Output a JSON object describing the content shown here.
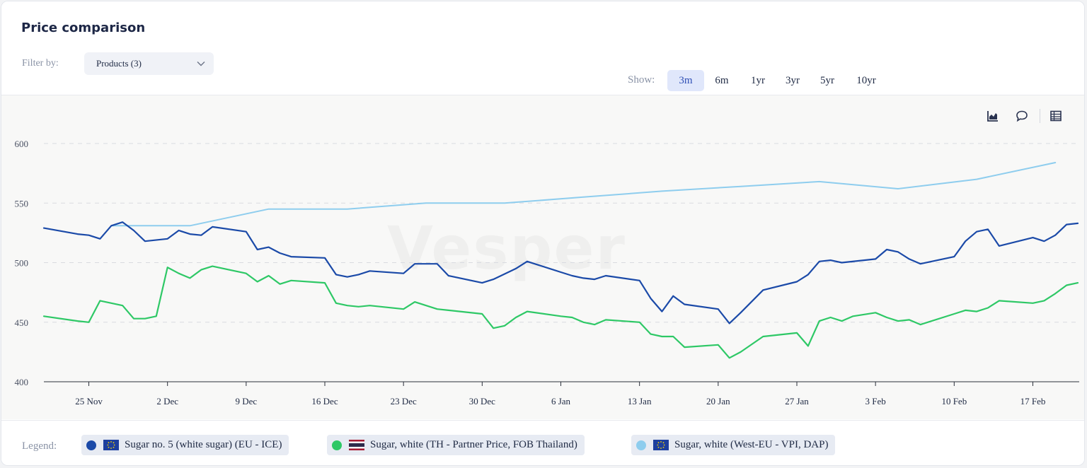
{
  "header": {
    "title": "Price comparison",
    "filter_label": "Filter by:",
    "filter_value": "Products (3)",
    "show_label": "Show:",
    "ranges": [
      "3m",
      "6m",
      "1yr",
      "3yr",
      "5yr",
      "10yr"
    ],
    "active_range": "3m"
  },
  "toolbar": {
    "icons": [
      "chart-type-icon",
      "comment-icon",
      "table-icon"
    ]
  },
  "watermark": "Vesper",
  "legend": {
    "label": "Legend:",
    "items": [
      {
        "label": "Sugar no. 5 (white sugar) (EU - ICE)",
        "color": "#1b4aa8",
        "flag": "eu-flag-icon"
      },
      {
        "label": "Sugar, white (TH - Partner Price, FOB Thailand)",
        "color": "#2ec866",
        "flag": "thailand-flag-icon"
      },
      {
        "label": "Sugar, white (West-EU - VPI, DAP)",
        "color": "#8ecdee",
        "flag": "eu-flag-icon"
      }
    ]
  },
  "chart_data": {
    "type": "line",
    "x_unit": "date",
    "ylim": [
      400,
      600
    ],
    "yticks": [
      400,
      450,
      500,
      550,
      600
    ],
    "xticks": [
      {
        "label": "25 Nov",
        "date": "2024-11-25"
      },
      {
        "label": "2 Dec",
        "date": "2024-12-02"
      },
      {
        "label": "9 Dec",
        "date": "2024-12-09"
      },
      {
        "label": "16 Dec",
        "date": "2024-12-16"
      },
      {
        "label": "23 Dec",
        "date": "2024-12-23"
      },
      {
        "label": "30 Dec",
        "date": "2024-12-30"
      },
      {
        "label": "6 Jan",
        "date": "2025-01-06"
      },
      {
        "label": "13 Jan",
        "date": "2025-01-13"
      },
      {
        "label": "20 Jan",
        "date": "2025-01-20"
      },
      {
        "label": "27 Jan",
        "date": "2025-01-27"
      },
      {
        "label": "3 Feb",
        "date": "2025-02-03"
      },
      {
        "label": "10 Feb",
        "date": "2025-02-10"
      },
      {
        "label": "17 Feb",
        "date": "2025-02-17"
      }
    ],
    "x_domain": [
      "2024-11-21",
      "2025-02-21"
    ],
    "grid": "horizontal-dashed",
    "legend_position": "bottom",
    "series": [
      {
        "name": "Sugar no. 5 (white sugar) (EU - ICE)",
        "color": "#1b4aa8",
        "points": [
          [
            "2024-11-21",
            529
          ],
          [
            "2024-11-24",
            524
          ],
          [
            "2024-11-25",
            523
          ],
          [
            "2024-11-26",
            520
          ],
          [
            "2024-11-27",
            531
          ],
          [
            "2024-11-28",
            534
          ],
          [
            "2024-11-29",
            527
          ],
          [
            "2024-11-30",
            518
          ],
          [
            "2024-12-02",
            520
          ],
          [
            "2024-12-03",
            527
          ],
          [
            "2024-12-04",
            524
          ],
          [
            "2024-12-05",
            523
          ],
          [
            "2024-12-06",
            530
          ],
          [
            "2024-12-09",
            526
          ],
          [
            "2024-12-10",
            511
          ],
          [
            "2024-12-11",
            513
          ],
          [
            "2024-12-12",
            508
          ],
          [
            "2024-12-13",
            505
          ],
          [
            "2024-12-16",
            504
          ],
          [
            "2024-12-17",
            490
          ],
          [
            "2024-12-18",
            488
          ],
          [
            "2024-12-19",
            490
          ],
          [
            "2024-12-20",
            493
          ],
          [
            "2024-12-23",
            491
          ],
          [
            "2024-12-24",
            499
          ],
          [
            "2024-12-26",
            499
          ],
          [
            "2024-12-27",
            489
          ],
          [
            "2024-12-30",
            483
          ],
          [
            "2024-12-31",
            486
          ],
          [
            "2025-01-02",
            495
          ],
          [
            "2025-01-03",
            501
          ],
          [
            "2025-01-06",
            492
          ],
          [
            "2025-01-07",
            489
          ],
          [
            "2025-01-08",
            487
          ],
          [
            "2025-01-09",
            486
          ],
          [
            "2025-01-10",
            489
          ],
          [
            "2025-01-13",
            485
          ],
          [
            "2025-01-14",
            470
          ],
          [
            "2025-01-15",
            459
          ],
          [
            "2025-01-16",
            472
          ],
          [
            "2025-01-17",
            465
          ],
          [
            "2025-01-20",
            461
          ],
          [
            "2025-01-21",
            449
          ],
          [
            "2025-01-22",
            458
          ],
          [
            "2025-01-24",
            477
          ],
          [
            "2025-01-27",
            484
          ],
          [
            "2025-01-28",
            490
          ],
          [
            "2025-01-29",
            501
          ],
          [
            "2025-01-30",
            502
          ],
          [
            "2025-01-31",
            500
          ],
          [
            "2025-02-03",
            503
          ],
          [
            "2025-02-04",
            511
          ],
          [
            "2025-02-05",
            509
          ],
          [
            "2025-02-06",
            503
          ],
          [
            "2025-02-07",
            499
          ],
          [
            "2025-02-10",
            505
          ],
          [
            "2025-02-11",
            518
          ],
          [
            "2025-02-12",
            526
          ],
          [
            "2025-02-13",
            528
          ],
          [
            "2025-02-14",
            514
          ],
          [
            "2025-02-17",
            521
          ],
          [
            "2025-02-18",
            518
          ],
          [
            "2025-02-19",
            523
          ],
          [
            "2025-02-20",
            532
          ],
          [
            "2025-02-21",
            533
          ]
        ]
      },
      {
        "name": "Sugar, white (TH - Partner Price, FOB Thailand)",
        "color": "#2ec866",
        "points": [
          [
            "2024-11-21",
            455
          ],
          [
            "2024-11-24",
            451
          ],
          [
            "2024-11-25",
            450
          ],
          [
            "2024-11-26",
            468
          ],
          [
            "2024-11-27",
            466
          ],
          [
            "2024-11-28",
            464
          ],
          [
            "2024-11-29",
            453
          ],
          [
            "2024-11-30",
            453
          ],
          [
            "2024-12-01",
            455
          ],
          [
            "2024-12-02",
            496
          ],
          [
            "2024-12-03",
            491
          ],
          [
            "2024-12-04",
            487
          ],
          [
            "2024-12-05",
            494
          ],
          [
            "2024-12-06",
            497
          ],
          [
            "2024-12-09",
            491
          ],
          [
            "2024-12-10",
            484
          ],
          [
            "2024-12-11",
            489
          ],
          [
            "2024-12-12",
            482
          ],
          [
            "2024-12-13",
            485
          ],
          [
            "2024-12-16",
            483
          ],
          [
            "2024-12-17",
            466
          ],
          [
            "2024-12-18",
            464
          ],
          [
            "2024-12-19",
            463
          ],
          [
            "2024-12-20",
            464
          ],
          [
            "2024-12-23",
            461
          ],
          [
            "2024-12-24",
            467
          ],
          [
            "2024-12-26",
            461
          ],
          [
            "2024-12-27",
            460
          ],
          [
            "2024-12-30",
            457
          ],
          [
            "2024-12-31",
            445
          ],
          [
            "2025-01-01",
            447
          ],
          [
            "2025-01-02",
            454
          ],
          [
            "2025-01-03",
            459
          ],
          [
            "2025-01-06",
            455
          ],
          [
            "2025-01-07",
            454
          ],
          [
            "2025-01-08",
            450
          ],
          [
            "2025-01-09",
            448
          ],
          [
            "2025-01-10",
            452
          ],
          [
            "2025-01-13",
            450
          ],
          [
            "2025-01-14",
            440
          ],
          [
            "2025-01-15",
            438
          ],
          [
            "2025-01-16",
            438
          ],
          [
            "2025-01-17",
            429
          ],
          [
            "2025-01-20",
            431
          ],
          [
            "2025-01-21",
            420
          ],
          [
            "2025-01-22",
            425
          ],
          [
            "2025-01-24",
            438
          ],
          [
            "2025-01-27",
            441
          ],
          [
            "2025-01-28",
            430
          ],
          [
            "2025-01-29",
            451
          ],
          [
            "2025-01-30",
            454
          ],
          [
            "2025-01-31",
            451
          ],
          [
            "2025-02-01",
            455
          ],
          [
            "2025-02-03",
            458
          ],
          [
            "2025-02-04",
            454
          ],
          [
            "2025-02-05",
            451
          ],
          [
            "2025-02-06",
            452
          ],
          [
            "2025-02-07",
            448
          ],
          [
            "2025-02-10",
            457
          ],
          [
            "2025-02-11",
            460
          ],
          [
            "2025-02-12",
            459
          ],
          [
            "2025-02-13",
            462
          ],
          [
            "2025-02-14",
            468
          ],
          [
            "2025-02-17",
            466
          ],
          [
            "2025-02-18",
            468
          ],
          [
            "2025-02-19",
            474
          ],
          [
            "2025-02-20",
            481
          ],
          [
            "2025-02-21",
            483
          ]
        ]
      },
      {
        "name": "Sugar, white (West-EU - VPI, DAP)",
        "color": "#8ecdee",
        "points": [
          [
            "2024-11-27",
            531
          ],
          [
            "2024-12-04",
            531
          ],
          [
            "2024-12-11",
            545
          ],
          [
            "2024-12-18",
            545
          ],
          [
            "2024-12-25",
            550
          ],
          [
            "2025-01-01",
            550
          ],
          [
            "2025-01-08",
            555
          ],
          [
            "2025-01-15",
            560
          ],
          [
            "2025-01-22",
            564
          ],
          [
            "2025-01-29",
            568
          ],
          [
            "2025-02-05",
            562
          ],
          [
            "2025-02-12",
            570
          ],
          [
            "2025-02-19",
            584
          ]
        ]
      }
    ]
  }
}
